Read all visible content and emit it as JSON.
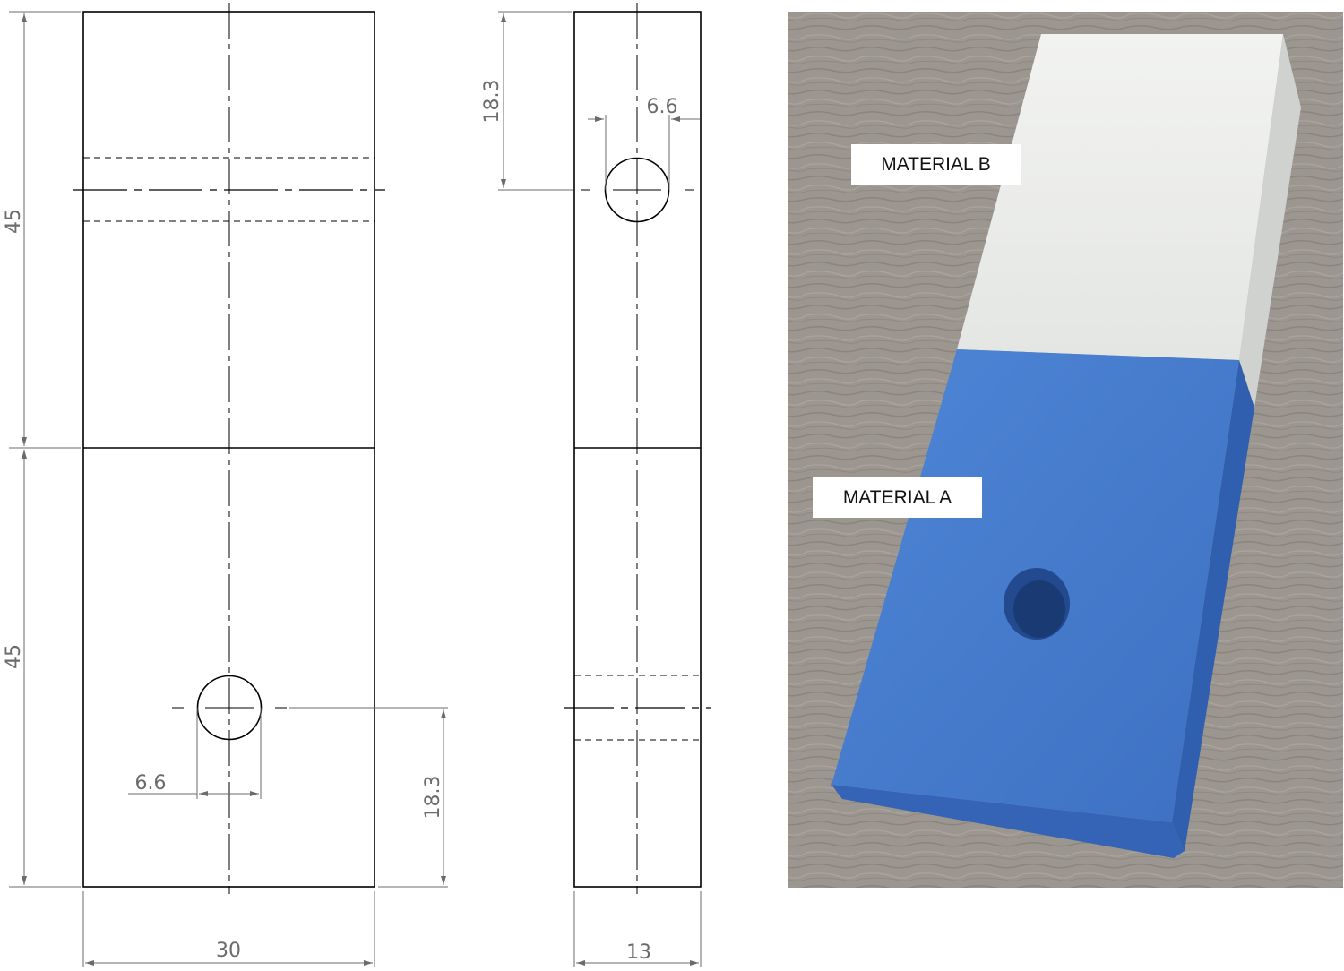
{
  "drawing": {
    "front_view": {
      "height_upper_label": "45",
      "height_lower_label": "45",
      "width_label": "30",
      "hole_diameter_label": "6.6",
      "hole_offset_label": "18.3"
    },
    "side_view": {
      "hole_offset_label": "18.3",
      "hole_diameter_label": "6.6",
      "width_label": "13"
    }
  },
  "photo": {
    "label_b": "MATERIAL B",
    "label_a": "MATERIAL A",
    "colors": {
      "material_a": "#4a7fcf",
      "material_b": "#eef0ee",
      "background": "#9c9690"
    }
  }
}
